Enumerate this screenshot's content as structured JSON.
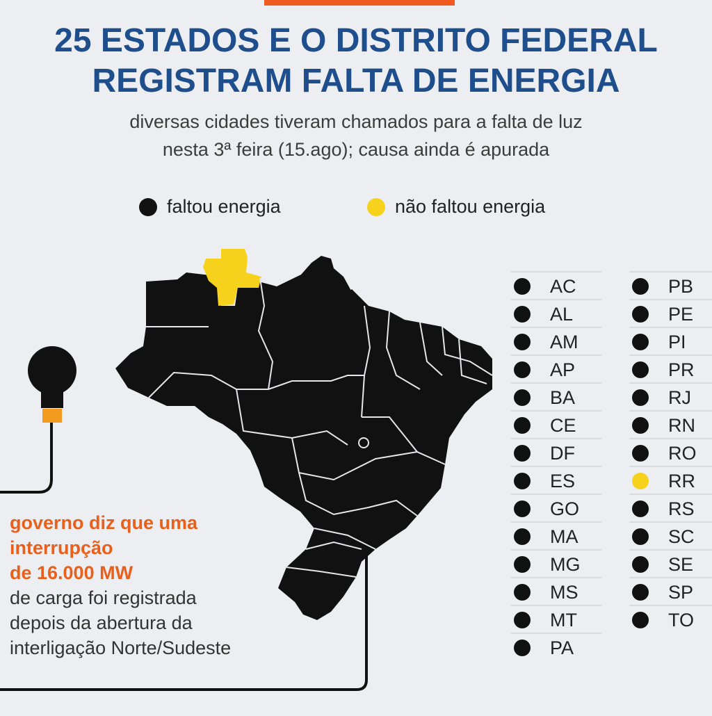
{
  "header": {
    "title_line1": "25 ESTADOS E O DISTRITO FEDERAL",
    "title_line2": "REGISTRAM FALTA DE ENERGIA",
    "subtitle_line1": "diversas cidades tiveram chamados para a falta de luz",
    "subtitle_line2": "nesta 3ª feira (15.ago); causa ainda é apurada"
  },
  "legend": {
    "items": [
      {
        "label": "faltou energia",
        "color": "#111111"
      },
      {
        "label": "não faltou energia",
        "color": "#f7d21c"
      }
    ]
  },
  "colors": {
    "outage": "#111111",
    "no_outage": "#f7d21c",
    "accent": "#f05a1e",
    "title": "#1f4e8c",
    "highlight_text": "#e8601c"
  },
  "map": {
    "no_outage_state": "RR"
  },
  "states_col1": [
    {
      "code": "AC",
      "status": "outage"
    },
    {
      "code": "AL",
      "status": "outage"
    },
    {
      "code": "AM",
      "status": "outage"
    },
    {
      "code": "AP",
      "status": "outage"
    },
    {
      "code": "BA",
      "status": "outage"
    },
    {
      "code": "CE",
      "status": "outage"
    },
    {
      "code": "DF",
      "status": "outage"
    },
    {
      "code": "ES",
      "status": "outage"
    },
    {
      "code": "GO",
      "status": "outage"
    },
    {
      "code": "MA",
      "status": "outage"
    },
    {
      "code": "MG",
      "status": "outage"
    },
    {
      "code": "MS",
      "status": "outage"
    },
    {
      "code": "MT",
      "status": "outage"
    },
    {
      "code": "PA",
      "status": "outage"
    }
  ],
  "states_col2": [
    {
      "code": "PB",
      "status": "outage"
    },
    {
      "code": "PE",
      "status": "outage"
    },
    {
      "code": "PI",
      "status": "outage"
    },
    {
      "code": "PR",
      "status": "outage"
    },
    {
      "code": "RJ",
      "status": "outage"
    },
    {
      "code": "RN",
      "status": "outage"
    },
    {
      "code": "RO",
      "status": "outage"
    },
    {
      "code": "RR",
      "status": "no_outage"
    },
    {
      "code": "RS",
      "status": "outage"
    },
    {
      "code": "SC",
      "status": "outage"
    },
    {
      "code": "SE",
      "status": "outage"
    },
    {
      "code": "SP",
      "status": "outage"
    },
    {
      "code": "TO",
      "status": "outage"
    }
  ],
  "note": {
    "highlight_line1": "governo diz que uma",
    "highlight_line2": "interrupção",
    "highlight_line3": "de 16.000 MW",
    "line4": "de carga foi registrada",
    "line5": "depois da abertura da",
    "line6": "interligação Norte/Sudeste"
  }
}
